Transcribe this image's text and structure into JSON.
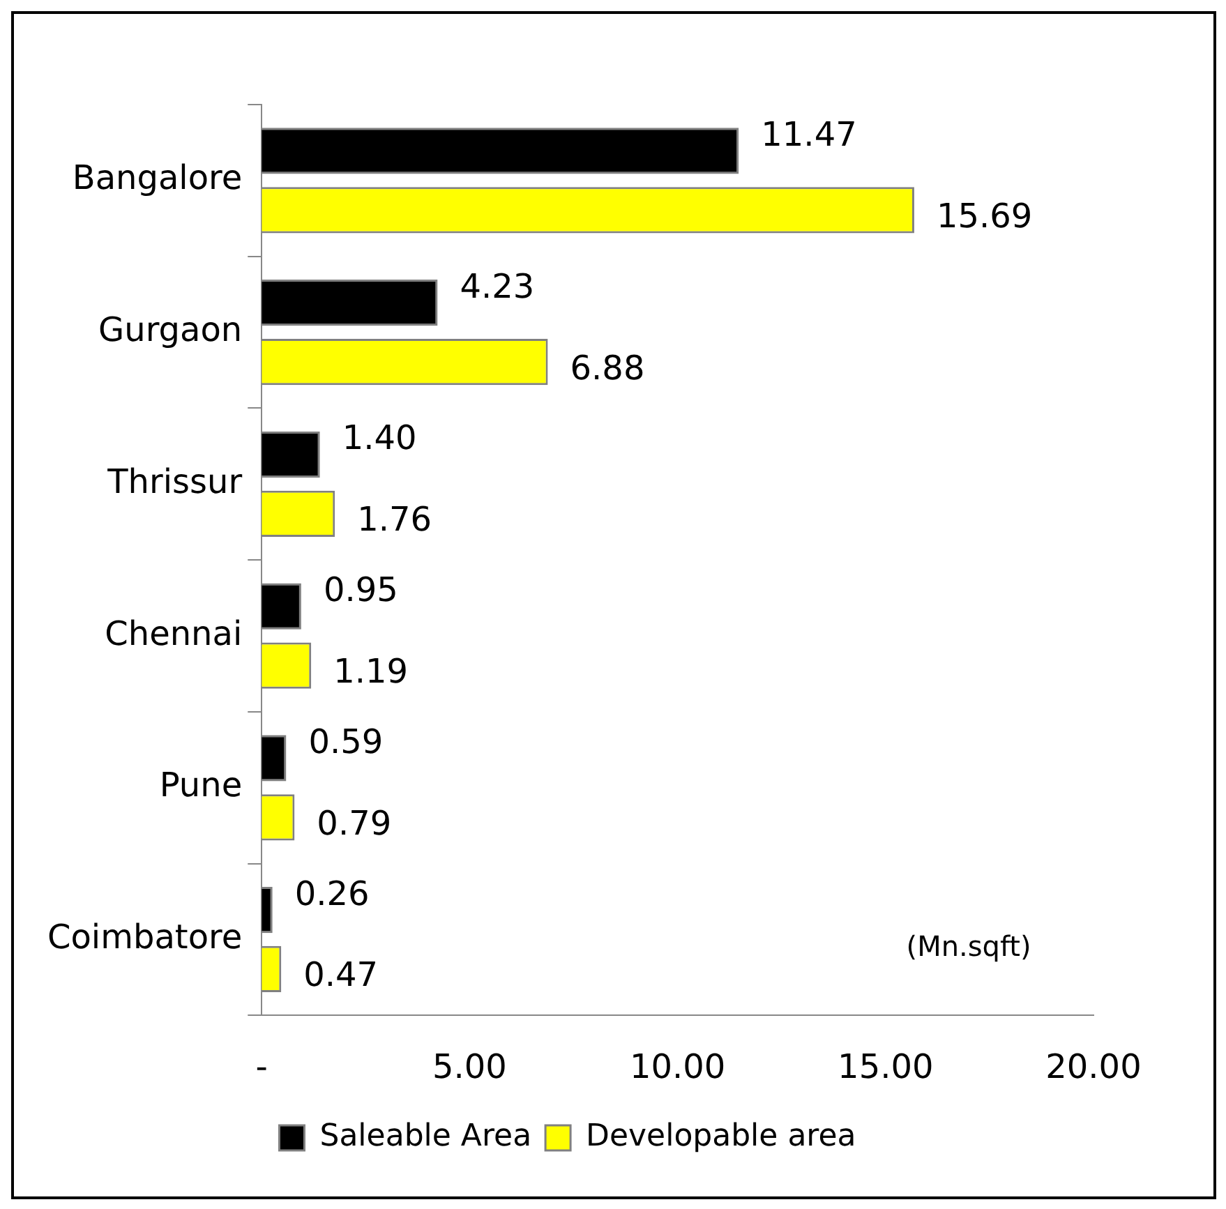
{
  "chart_data": {
    "type": "bar",
    "orientation": "horizontal",
    "categories": [
      "Bangalore",
      "Gurgaon",
      "Thrissur",
      "Chennai",
      "Pune",
      "Coimbatore"
    ],
    "series": [
      {
        "name": "Saleable Area",
        "color": "#000000",
        "values": [
          11.47,
          4.23,
          1.4,
          0.95,
          0.59,
          0.26
        ],
        "value_labels": [
          "11.47",
          "4.23",
          "1.40",
          "0.95",
          "0.59",
          "0.26"
        ]
      },
      {
        "name": "Developable area",
        "color": "#ffff00",
        "values": [
          15.69,
          6.88,
          1.76,
          1.19,
          0.79,
          0.47
        ],
        "value_labels": [
          "15.69",
          "6.88",
          "1.76",
          "1.19",
          "0.79",
          "0.47"
        ]
      }
    ],
    "xlim": [
      0,
      20
    ],
    "xticks": [
      {
        "value": 0,
        "label": "-"
      },
      {
        "value": 5,
        "label": "5.00"
      },
      {
        "value": 10,
        "label": "10.00"
      },
      {
        "value": 15,
        "label": "15.00"
      },
      {
        "value": 20,
        "label": "20.00"
      }
    ],
    "grid": false,
    "legend": "bottom",
    "annotations": [
      "(Mn.sqft)"
    ]
  }
}
